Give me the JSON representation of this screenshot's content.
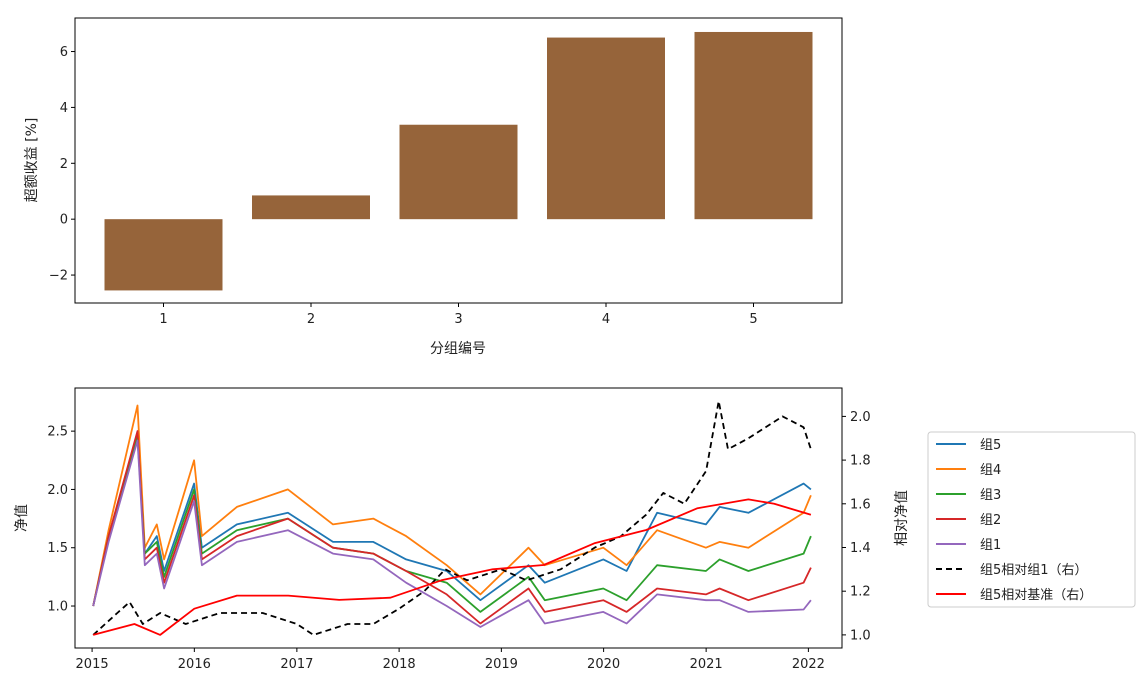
{
  "chart_data": [
    {
      "type": "bar",
      "categories": [
        "1",
        "2",
        "3",
        "4",
        "5"
      ],
      "values": [
        -2.55,
        0.85,
        3.38,
        6.5,
        6.7
      ],
      "xlabel": "分组编号",
      "ylabel": "超额收益 [%]",
      "ylim": [
        -3.0,
        7.2
      ],
      "yticks": [
        -2,
        0,
        2,
        4,
        6
      ],
      "bar_color": "#96643a",
      "grid": false
    },
    {
      "type": "line",
      "x_range": [
        "2014-11-01",
        "2022-05-01"
      ],
      "xticks": [
        "2015",
        "2016",
        "2017",
        "2018",
        "2019",
        "2020",
        "2021",
        "2022"
      ],
      "ylabel": "净值",
      "ylim": [
        0.64,
        2.87
      ],
      "yticks": [
        "1.0",
        "1.5",
        "2.0",
        "2.5"
      ],
      "ylabel_right": "相对净值",
      "ylim_right": [
        0.94,
        2.13
      ],
      "yticks_right": [
        "1.0",
        "1.2",
        "1.4",
        "1.6",
        "1.8",
        "2.0"
      ],
      "legend_position": "outside-right",
      "grid": false,
      "series": [
        {
          "name": "组5",
          "axis": "left",
          "color": "#1f77b4",
          "style": "solid",
          "points": [
            [
              "2015-01-05",
              1.0
            ],
            [
              "2015-03-01",
              1.6
            ],
            [
              "2015-06-12",
              2.45
            ],
            [
              "2015-07-08",
              1.45
            ],
            [
              "2015-08-20",
              1.6
            ],
            [
              "2015-09-15",
              1.3
            ],
            [
              "2015-12-31",
              2.05
            ],
            [
              "2016-01-28",
              1.5
            ],
            [
              "2016-06-01",
              1.7
            ],
            [
              "2016-11-30",
              1.8
            ],
            [
              "2017-05-10",
              1.55
            ],
            [
              "2017-10-01",
              1.55
            ],
            [
              "2018-01-26",
              1.4
            ],
            [
              "2018-06-20",
              1.3
            ],
            [
              "2018-10-18",
              1.05
            ],
            [
              "2019-04-08",
              1.35
            ],
            [
              "2019-06-05",
              1.2
            ],
            [
              "2019-12-31",
              1.4
            ],
            [
              "2020-03-23",
              1.3
            ],
            [
              "2020-07-10",
              1.8
            ],
            [
              "2020-12-31",
              1.7
            ],
            [
              "2021-02-18",
              1.85
            ],
            [
              "2021-06-01",
              1.8
            ],
            [
              "2021-12-15",
              2.05
            ],
            [
              "2022-01-10",
              2.0
            ]
          ]
        },
        {
          "name": "组4",
          "axis": "left",
          "color": "#ff7f0e",
          "style": "solid",
          "points": [
            [
              "2015-01-05",
              1.0
            ],
            [
              "2015-03-01",
              1.65
            ],
            [
              "2015-06-12",
              2.72
            ],
            [
              "2015-07-08",
              1.5
            ],
            [
              "2015-08-20",
              1.7
            ],
            [
              "2015-09-15",
              1.4
            ],
            [
              "2015-12-31",
              2.25
            ],
            [
              "2016-01-28",
              1.6
            ],
            [
              "2016-06-01",
              1.85
            ],
            [
              "2016-11-30",
              2.0
            ],
            [
              "2017-05-10",
              1.7
            ],
            [
              "2017-10-01",
              1.75
            ],
            [
              "2018-01-26",
              1.6
            ],
            [
              "2018-06-20",
              1.35
            ],
            [
              "2018-10-18",
              1.1
            ],
            [
              "2019-04-08",
              1.5
            ],
            [
              "2019-06-05",
              1.35
            ],
            [
              "2019-12-31",
              1.5
            ],
            [
              "2020-03-23",
              1.35
            ],
            [
              "2020-07-10",
              1.65
            ],
            [
              "2020-12-31",
              1.5
            ],
            [
              "2021-02-18",
              1.55
            ],
            [
              "2021-06-01",
              1.5
            ],
            [
              "2021-12-15",
              1.8
            ],
            [
              "2022-01-10",
              1.95
            ]
          ]
        },
        {
          "name": "组3",
          "axis": "left",
          "color": "#2ca02c",
          "style": "solid",
          "points": [
            [
              "2015-01-05",
              1.0
            ],
            [
              "2015-03-01",
              1.6
            ],
            [
              "2015-06-12",
              2.45
            ],
            [
              "2015-07-08",
              1.45
            ],
            [
              "2015-08-20",
              1.55
            ],
            [
              "2015-09-15",
              1.25
            ],
            [
              "2015-12-31",
              2.0
            ],
            [
              "2016-01-28",
              1.45
            ],
            [
              "2016-06-01",
              1.65
            ],
            [
              "2016-11-30",
              1.75
            ],
            [
              "2017-05-10",
              1.5
            ],
            [
              "2017-10-01",
              1.45
            ],
            [
              "2018-01-26",
              1.3
            ],
            [
              "2018-06-20",
              1.2
            ],
            [
              "2018-10-18",
              0.95
            ],
            [
              "2019-04-08",
              1.25
            ],
            [
              "2019-06-05",
              1.05
            ],
            [
              "2019-12-31",
              1.15
            ],
            [
              "2020-03-23",
              1.05
            ],
            [
              "2020-07-10",
              1.35
            ],
            [
              "2020-12-31",
              1.3
            ],
            [
              "2021-02-18",
              1.4
            ],
            [
              "2021-06-01",
              1.3
            ],
            [
              "2021-12-15",
              1.45
            ],
            [
              "2022-01-10",
              1.6
            ]
          ]
        },
        {
          "name": "组2",
          "axis": "left",
          "color": "#d62728",
          "style": "solid",
          "points": [
            [
              "2015-01-05",
              1.0
            ],
            [
              "2015-03-01",
              1.6
            ],
            [
              "2015-06-12",
              2.5
            ],
            [
              "2015-07-08",
              1.4
            ],
            [
              "2015-08-20",
              1.5
            ],
            [
              "2015-09-15",
              1.2
            ],
            [
              "2015-12-31",
              1.95
            ],
            [
              "2016-01-28",
              1.4
            ],
            [
              "2016-06-01",
              1.6
            ],
            [
              "2016-11-30",
              1.75
            ],
            [
              "2017-05-10",
              1.5
            ],
            [
              "2017-10-01",
              1.45
            ],
            [
              "2018-01-26",
              1.3
            ],
            [
              "2018-06-20",
              1.1
            ],
            [
              "2018-10-18",
              0.85
            ],
            [
              "2019-04-08",
              1.15
            ],
            [
              "2019-06-05",
              0.95
            ],
            [
              "2019-12-31",
              1.05
            ],
            [
              "2020-03-23",
              0.95
            ],
            [
              "2020-07-10",
              1.15
            ],
            [
              "2020-12-31",
              1.1
            ],
            [
              "2021-02-18",
              1.15
            ],
            [
              "2021-06-01",
              1.05
            ],
            [
              "2021-12-15",
              1.2
            ],
            [
              "2022-01-10",
              1.33
            ]
          ]
        },
        {
          "name": "组1",
          "axis": "left",
          "color": "#9467bd",
          "style": "solid",
          "points": [
            [
              "2015-01-05",
              1.0
            ],
            [
              "2015-03-01",
              1.55
            ],
            [
              "2015-06-12",
              2.42
            ],
            [
              "2015-07-08",
              1.35
            ],
            [
              "2015-08-20",
              1.45
            ],
            [
              "2015-09-15",
              1.15
            ],
            [
              "2015-12-31",
              1.9
            ],
            [
              "2016-01-28",
              1.35
            ],
            [
              "2016-06-01",
              1.55
            ],
            [
              "2016-11-30",
              1.65
            ],
            [
              "2017-05-10",
              1.45
            ],
            [
              "2017-10-01",
              1.4
            ],
            [
              "2018-01-26",
              1.2
            ],
            [
              "2018-06-20",
              1.0
            ],
            [
              "2018-10-18",
              0.82
            ],
            [
              "2019-04-08",
              1.05
            ],
            [
              "2019-06-05",
              0.85
            ],
            [
              "2019-12-31",
              0.95
            ],
            [
              "2020-03-23",
              0.85
            ],
            [
              "2020-07-10",
              1.1
            ],
            [
              "2020-12-31",
              1.05
            ],
            [
              "2021-02-18",
              1.05
            ],
            [
              "2021-06-01",
              0.95
            ],
            [
              "2021-12-15",
              0.97
            ],
            [
              "2022-01-10",
              1.05
            ]
          ]
        },
        {
          "name": "组5相对组1（右）",
          "axis": "right",
          "color": "#000000",
          "style": "dashed",
          "points": [
            [
              "2015-01-05",
              1.0
            ],
            [
              "2015-04-01",
              1.1
            ],
            [
              "2015-05-15",
              1.15
            ],
            [
              "2015-07-01",
              1.05
            ],
            [
              "2015-09-01",
              1.1
            ],
            [
              "2015-12-01",
              1.05
            ],
            [
              "2016-04-01",
              1.1
            ],
            [
              "2016-09-01",
              1.1
            ],
            [
              "2017-01-01",
              1.05
            ],
            [
              "2017-03-01",
              1.0
            ],
            [
              "2017-07-01",
              1.05
            ],
            [
              "2017-10-01",
              1.05
            ],
            [
              "2018-01-01",
              1.12
            ],
            [
              "2018-04-01",
              1.2
            ],
            [
              "2018-06-15",
              1.3
            ],
            [
              "2018-09-01",
              1.25
            ],
            [
              "2019-01-01",
              1.3
            ],
            [
              "2019-04-01",
              1.25
            ],
            [
              "2019-08-01",
              1.3
            ],
            [
              "2019-12-01",
              1.4
            ],
            [
              "2020-03-01",
              1.45
            ],
            [
              "2020-06-01",
              1.55
            ],
            [
              "2020-08-01",
              1.65
            ],
            [
              "2020-10-15",
              1.6
            ],
            [
              "2021-01-01",
              1.75
            ],
            [
              "2021-02-15",
              2.07
            ],
            [
              "2021-03-20",
              1.85
            ],
            [
              "2021-06-01",
              1.9
            ],
            [
              "2021-10-01",
              2.0
            ],
            [
              "2021-12-15",
              1.95
            ],
            [
              "2022-01-10",
              1.85
            ]
          ]
        },
        {
          "name": "组5相对基准（右）",
          "axis": "right",
          "color": "#ff0000",
          "style": "solid",
          "points": [
            [
              "2015-01-05",
              1.0
            ],
            [
              "2015-06-01",
              1.05
            ],
            [
              "2015-09-01",
              1.0
            ],
            [
              "2016-01-01",
              1.12
            ],
            [
              "2016-06-01",
              1.18
            ],
            [
              "2016-12-01",
              1.18
            ],
            [
              "2017-06-01",
              1.16
            ],
            [
              "2017-12-01",
              1.17
            ],
            [
              "2018-06-01",
              1.25
            ],
            [
              "2018-12-01",
              1.3
            ],
            [
              "2019-06-01",
              1.32
            ],
            [
              "2019-12-01",
              1.42
            ],
            [
              "2020-06-01",
              1.48
            ],
            [
              "2020-12-01",
              1.58
            ],
            [
              "2021-06-01",
              1.62
            ],
            [
              "2021-09-01",
              1.6
            ],
            [
              "2022-01-10",
              1.55
            ]
          ]
        }
      ]
    }
  ]
}
